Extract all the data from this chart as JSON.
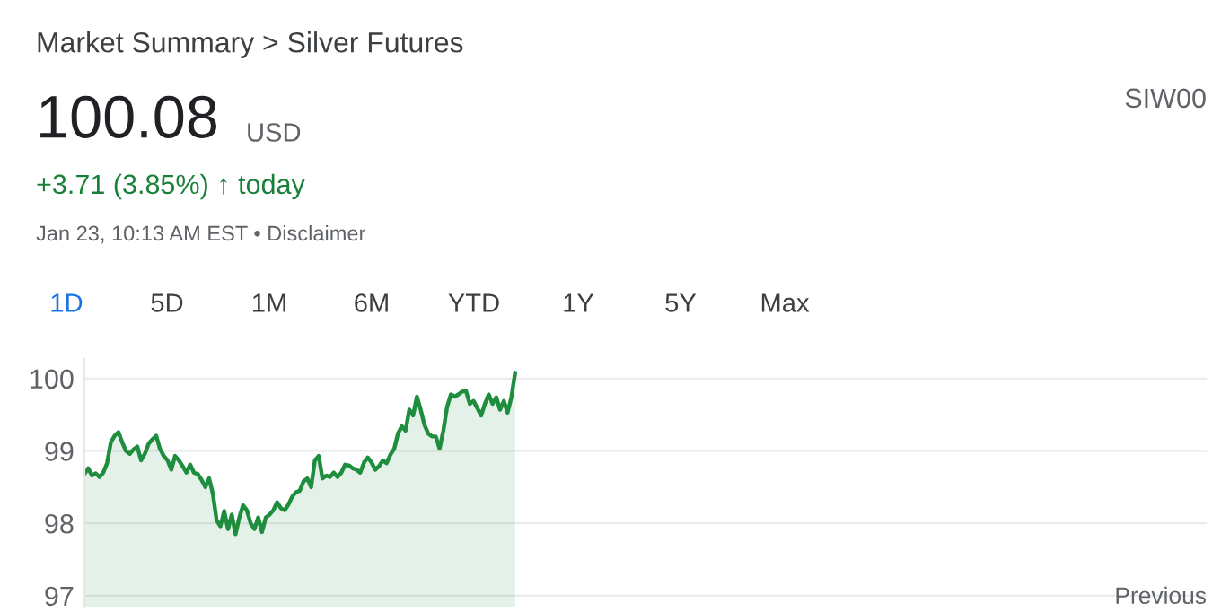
{
  "chart_data": {
    "type": "area",
    "title": "Market Summary > Silver Futures",
    "annotations": [
      "100.08",
      "USD",
      "+3.71 (3.85%) ↑ today",
      "Jan 23, 10:13 AM EST • Disclaimer",
      "SIW00",
      "1D",
      "5D",
      "1M",
      "6M",
      "YTD",
      "1Y",
      "5Y",
      "Max",
      "Previous"
    ],
    "categories": [
      null,
      null,
      null,
      null,
      null,
      null,
      null,
      null,
      null,
      null,
      null,
      null,
      null,
      null,
      null,
      null,
      null,
      null,
      null,
      null,
      null,
      null,
      null,
      null,
      null,
      null,
      null,
      null,
      null,
      null,
      null,
      null,
      null,
      null,
      null,
      null,
      null,
      null,
      null,
      null,
      null,
      null,
      null,
      null,
      null,
      null,
      null,
      null,
      null,
      null,
      null,
      null,
      null,
      null,
      null,
      null,
      null,
      null,
      null,
      null,
      null,
      null,
      null,
      null,
      null,
      null,
      null,
      null,
      null,
      null,
      null,
      null,
      null,
      null,
      null,
      null,
      null,
      null,
      null,
      null,
      null,
      null,
      null,
      null,
      null,
      null,
      null,
      null,
      null,
      null,
      null,
      null,
      null,
      null,
      null,
      null,
      null,
      null,
      null,
      null,
      null,
      null,
      null,
      null,
      null,
      null,
      null,
      null,
      null,
      null,
      null,
      null,
      null,
      null,
      null,
      null,
      null,
      null,
      null,
      null,
      null,
      null,
      null,
      null,
      null,
      null,
      null,
      null,
      null,
      null,
      null,
      null,
      null,
      null,
      null,
      null,
      null,
      null,
      null,
      null,
      null,
      null,
      null,
      null,
      null,
      null,
      null,
      null,
      null,
      null,
      null,
      null,
      null,
      null,
      null,
      null,
      null,
      null,
      null,
      null,
      null,
      null,
      null,
      null,
      null,
      null,
      null,
      null,
      null,
      null,
      null,
      null,
      null,
      null,
      null,
      null,
      null,
      null,
      null,
      null,
      null,
      null,
      null,
      null,
      null,
      null,
      null,
      null,
      null,
      null,
      null,
      null,
      null,
      null,
      null,
      null,
      null,
      null,
      null,
      null,
      null,
      null,
      null,
      null,
      null,
      null,
      null,
      null,
      null,
      null,
      null,
      null,
      null,
      null,
      null,
      null,
      null,
      null,
      null,
      null,
      null,
      null,
      null,
      null,
      null,
      null,
      null,
      null,
      null,
      null,
      null,
      null,
      null,
      null,
      null,
      null,
      null,
      null,
      null,
      null,
      null,
      null,
      null,
      null,
      null,
      null,
      null,
      null,
      null,
      null,
      null,
      null,
      null,
      null,
      null,
      null,
      null,
      null,
      null,
      null,
      null,
      null,
      null,
      null,
      null,
      null,
      null,
      null,
      null,
      null,
      null,
      null,
      null,
      null,
      null,
      null,
      null,
      null,
      null,
      null,
      null,
      null,
      null,
      null,
      null,
      null,
      null,
      null,
      null,
      null,
      null,
      null,
      null,
      null,
      null,
      null,
      null,
      null
    ],
    "series": [
      {
        "color": "#1e8e3e",
        "values": [
          98.68,
          98.76,
          98.66,
          98.69,
          98.64,
          98.7,
          98.83,
          99.12,
          99.21,
          99.26,
          99.12,
          99.0,
          98.96,
          99.02,
          99.06,
          98.87,
          98.96,
          99.1,
          99.16,
          99.21,
          99.03,
          98.93,
          98.87,
          98.74,
          98.93,
          98.87,
          98.79,
          98.7,
          98.81,
          98.7,
          98.68,
          98.6,
          98.5,
          98.62,
          98.41,
          98.04,
          97.96,
          98.17,
          97.92,
          98.12,
          97.85,
          98.08,
          98.25,
          98.18,
          98.0,
          97.92,
          98.08,
          97.88,
          98.08,
          98.12,
          98.18,
          98.29,
          98.21,
          98.18,
          98.26,
          98.37,
          98.43,
          98.45,
          98.58,
          98.62,
          98.5,
          98.87,
          98.93,
          98.62,
          98.66,
          98.64,
          98.7,
          98.64,
          98.7,
          98.81,
          98.8,
          98.76,
          98.74,
          98.7,
          98.84,
          98.91,
          98.84,
          98.74,
          98.79,
          98.87,
          98.83,
          98.95,
          99.03,
          99.24,
          99.34,
          99.28,
          99.57,
          99.49,
          99.75,
          99.57,
          99.36,
          99.24,
          99.2,
          99.2,
          99.03,
          99.28,
          99.61,
          99.78,
          99.75,
          99.78,
          99.82,
          99.83,
          99.65,
          99.69,
          99.59,
          99.49,
          99.65,
          99.78,
          99.65,
          99.74,
          99.57,
          99.69,
          99.53,
          99.74,
          100.08,
          null,
          null,
          null,
          null,
          null,
          null,
          null,
          null,
          null,
          null,
          null,
          null,
          null,
          null,
          null,
          null,
          null,
          null,
          null,
          null,
          null,
          null,
          null,
          null,
          null,
          null,
          null,
          null,
          null,
          null,
          null,
          null,
          null,
          null,
          null,
          null,
          null,
          null,
          null,
          null,
          null,
          null,
          null,
          null,
          null,
          null,
          null,
          null,
          null,
          null,
          null,
          null,
          null,
          null,
          null,
          null,
          null,
          null,
          null,
          null,
          null,
          null,
          null,
          null,
          null,
          null,
          null,
          null,
          null,
          null,
          null,
          null,
          null,
          null,
          null,
          null,
          null,
          null,
          null,
          null,
          null,
          null,
          null,
          null,
          null,
          null,
          null,
          null,
          null,
          null,
          null,
          null,
          null,
          null,
          null,
          null,
          null,
          null,
          null,
          null,
          null,
          null,
          null,
          null,
          null,
          null,
          null,
          null,
          null,
          null,
          null,
          null,
          null,
          null,
          null,
          null,
          null,
          null,
          null,
          null,
          null,
          null,
          null,
          null,
          null,
          null,
          null,
          null,
          null,
          null,
          null,
          null,
          null,
          null,
          null,
          null,
          null,
          null,
          null,
          null,
          null,
          null,
          null,
          null,
          null,
          null,
          null,
          null,
          null,
          null,
          null,
          null,
          null,
          null,
          null,
          null,
          null,
          null,
          null,
          null,
          null,
          null,
          null,
          null,
          null,
          null,
          null,
          null,
          null,
          null,
          null,
          null,
          null,
          null,
          null,
          null,
          null,
          null,
          null,
          null,
          null,
          null,
          null
        ]
      }
    ],
    "ylim": [
      96.85,
      100.27
    ],
    "yticks": [
      97,
      98,
      99,
      100
    ],
    "grid": "y",
    "tick_labels": "y"
  }
}
